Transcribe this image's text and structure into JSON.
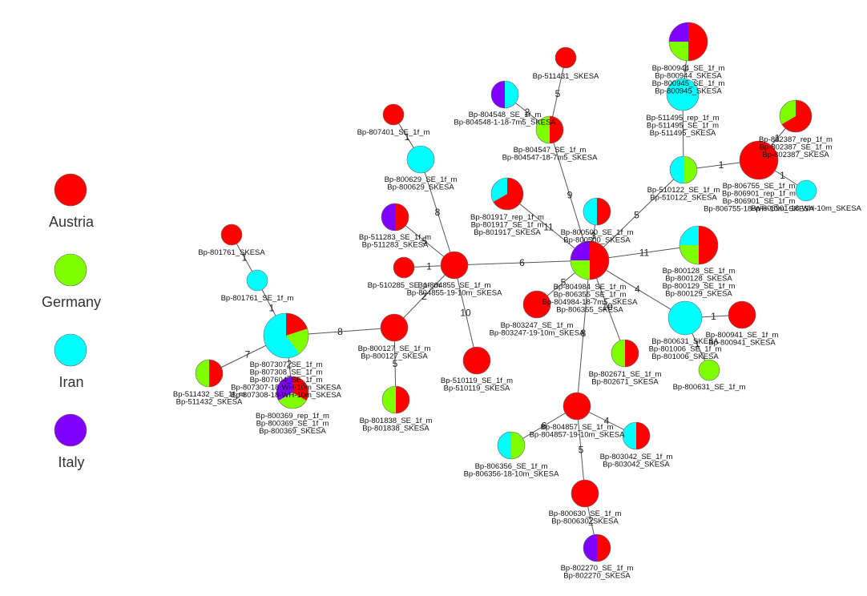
{
  "legend": [
    {
      "label": "Austria",
      "color": "#ff0000"
    },
    {
      "label": "Germany",
      "color": "#80ff00"
    },
    {
      "label": "Iran",
      "color": "#00ffff"
    },
    {
      "label": "Italy",
      "color": "#8000ff"
    }
  ],
  "nodes": {
    "n_801761": {
      "labels": [
        "Bp-801761_SKESA"
      ],
      "pie": [
        1,
        0,
        0,
        0
      ]
    },
    "n_801761b": {
      "labels": [
        "Bp-801761_SE_1f_m"
      ],
      "pie": [
        0,
        0,
        1,
        0
      ]
    },
    "n_807307": {
      "labels": [
        "Bp-807307_SE_1f_m",
        "Bp-807308_SE_1f_m",
        "Bp-807604_SE_1f_m",
        "Bp-807307-18-WH-10m_SKESA",
        "Bp-807308-18-WH-10m_SKESA"
      ],
      "pie": [
        1,
        1,
        3,
        0
      ]
    },
    "n_511432": {
      "labels": [
        "Bp-511432_SE_1f_m",
        "Bp-511432_SKESA"
      ],
      "pie": [
        1,
        1,
        0,
        0
      ]
    },
    "n_800369": {
      "labels": [
        "Bp-800369_rep_1f_m",
        "Bp-800369_SE_1f_m",
        "Bp-800369_SKESA"
      ],
      "pie": [
        1,
        1,
        0,
        1
      ]
    },
    "n_800127": {
      "labels": [
        "Bp-800127_SE_1f_m",
        "Bp-800127_SKESA"
      ],
      "pie": [
        1,
        0,
        0,
        0
      ]
    },
    "n_801838": {
      "labels": [
        "Bp-801838_SE_1f_m",
        "Bp-801838_SKESA"
      ],
      "pie": [
        1,
        1,
        0,
        0
      ]
    },
    "n_807401": {
      "labels": [
        "Bp-807401_SE_1f_m"
      ],
      "pie": [
        1,
        0,
        0,
        0
      ]
    },
    "n_800629": {
      "labels": [
        "Bp-800629_SE_1f_m",
        "Bp-800629_SKESA"
      ],
      "pie": [
        0,
        0,
        1,
        0
      ]
    },
    "n_511283": {
      "labels": [
        "Bp-511283_SE_1f_m",
        "Bp-511283_SKESA"
      ],
      "pie": [
        1,
        0,
        0,
        1
      ]
    },
    "n_510285": {
      "labels": [
        "Bp-510285_SE_1f_m"
      ],
      "pie": [
        1,
        0,
        0,
        0
      ]
    },
    "n_804855": {
      "labels": [
        "Bp-804855_SE_1f_m",
        "Bp-804855-19-10m_SKESA"
      ],
      "pie": [
        1,
        0,
        0,
        0
      ]
    },
    "n_510119": {
      "labels": [
        "Bp-510119_SE_1f_m",
        "Bp-510119_SKESA"
      ],
      "pie": [
        1,
        0,
        0,
        0
      ]
    },
    "n_804548": {
      "labels": [
        "Bp-804548_SE_1f_m",
        "Bp-804548-1-18-7m5_SKESA"
      ],
      "pie": [
        0,
        0,
        1,
        1
      ]
    },
    "n_511431": {
      "labels": [
        "Bp-511431_SKESA"
      ],
      "pie": [
        1,
        0,
        0,
        0
      ]
    },
    "n_804547": {
      "labels": [
        "Bp-804547_SE_1f_m",
        "Bp-804547-18-7m5_SKESA"
      ],
      "pie": [
        1,
        1,
        0,
        0
      ]
    },
    "n_801917": {
      "labels": [
        "Bp-801917_rep_1f_m",
        "Bp-801917_SE_1f_m",
        "Bp-801917_SKESA"
      ],
      "pie": [
        2,
        0,
        1,
        0
      ]
    },
    "n_800500": {
      "labels": [
        "Bp-800500_SE_1f_m",
        "Bp-800500_SKESA"
      ],
      "pie": [
        1,
        0,
        1,
        0
      ]
    },
    "n_804984": {
      "labels": [
        "Bp-804984_SE_1f_m",
        "Bp-806355_SE_1f_m",
        "Bp-804984-18-7m5_SKESA",
        "Bp-806355_SKESA"
      ],
      "pie": [
        2,
        1,
        0,
        1
      ]
    },
    "n_803247": {
      "labels": [
        "Bp-803247_SE_1f_m",
        "Bp-803247-19-10m_SKESA"
      ],
      "pie": [
        1,
        0,
        0,
        0
      ]
    },
    "n_802671": {
      "labels": [
        "Bp-802671_SE_1f_m",
        "Bp-802671_SKESA"
      ],
      "pie": [
        1,
        1,
        0,
        0
      ]
    },
    "n_804857": {
      "labels": [
        "Bp-804857_SE_1f_m",
        "Bp-804857-19-10m_SKESA"
      ],
      "pie": [
        1,
        0,
        0,
        0
      ]
    },
    "n_806356": {
      "labels": [
        "Bp-806356_SE_1f_m",
        "Bp-806356-18-10m_SKESA"
      ],
      "pie": [
        0,
        1,
        1,
        0
      ]
    },
    "n_803042": {
      "labels": [
        "Bp-803042_SE_1f_m",
        "Bp-803042_SKESA"
      ],
      "pie": [
        1,
        0,
        1,
        0
      ]
    },
    "n_800630": {
      "labels": [
        "Bp-800630_SE_1f_m",
        "Bp-800630_SKESA"
      ],
      "pie": [
        1,
        0,
        0,
        0
      ]
    },
    "n_802270": {
      "labels": [
        "Bp-802270_SE_1f_m",
        "Bp-802270_SKESA"
      ],
      "pie": [
        1,
        0,
        0,
        1
      ]
    },
    "n_800128": {
      "labels": [
        "Bp-800128_SE_1f_m",
        "Bp-800128_SKESA",
        "Bp-800129_SE_1f_m",
        "Bp-800129_SKESA"
      ],
      "pie": [
        2,
        1,
        1,
        0
      ]
    },
    "n_800631": {
      "labels": [
        "Bp-800631_SKESA",
        "Bp-801006_SE_1f_m",
        "Bp-801006_SKESA"
      ],
      "pie": [
        0,
        0,
        1,
        0
      ]
    },
    "n_800941": {
      "labels": [
        "Bp-800941_SE_1f_m",
        "Bp-800941_SKESA"
      ],
      "pie": [
        1,
        0,
        0,
        0
      ]
    },
    "n_800631b": {
      "labels": [
        "Bp-800631_SE_1f_m"
      ],
      "pie": [
        0,
        1,
        0,
        0
      ]
    },
    "n_510122": {
      "labels": [
        "Bp-510122_SE_1f_m",
        "Bp-510122_SKESA"
      ],
      "pie": [
        0,
        1,
        1,
        0
      ]
    },
    "n_511495": {
      "labels": [
        "Bp-511495_rep_1f_m",
        "Bp-511495_SE_1f_m",
        "Bp-511495_SKESA"
      ],
      "pie": [
        0,
        0,
        1,
        0
      ]
    },
    "n_800944": {
      "labels": [
        "Bp-800944_SE_1f_m",
        "Bp-800944_SKESA",
        "Bp-800945_SE_1f_m",
        "Bp-800945_SKESA"
      ],
      "pie": [
        2,
        1,
        0,
        1
      ]
    },
    "n_806755": {
      "labels": [
        "Bp-806755_SE_1f_m",
        "Bp-806901_rep_1f_m",
        "Bp-806901_SE_1f_m",
        "Bp-806755-18-WH-10m_SKESA"
      ],
      "pie": [
        1,
        0,
        0,
        0
      ]
    },
    "n_802387": {
      "labels": [
        "Bp-802387_rep_1f_m",
        "Bp-802387_SE_1f_m",
        "Bp-802387_SKESA"
      ],
      "pie": [
        2,
        1,
        0,
        0
      ]
    },
    "n_806901": {
      "labels": [
        "Bp-806901-18-WH-10m_SKESA"
      ],
      "pie": [
        0,
        0,
        1,
        0
      ]
    }
  },
  "edges": [
    {
      "from": "n_801761",
      "to": "n_801761b",
      "label": "1"
    },
    {
      "from": "n_801761b",
      "to": "n_807307",
      "label": "1"
    },
    {
      "from": "n_807307",
      "to": "n_511432",
      "label": "7"
    },
    {
      "from": "n_807307",
      "to": "n_800369",
      "label": "2"
    },
    {
      "from": "n_807307",
      "to": "n_800127",
      "label": "8"
    },
    {
      "from": "n_800127",
      "to": "n_801838",
      "label": "5"
    },
    {
      "from": "n_800127",
      "to": "n_804855",
      "label": "2"
    },
    {
      "from": "n_807401",
      "to": "n_800629",
      "label": "1"
    },
    {
      "from": "n_800629",
      "to": "n_804855",
      "label": "8"
    },
    {
      "from": "n_511283",
      "to": "n_804855",
      "label": "5"
    },
    {
      "from": "n_510285",
      "to": "n_804855",
      "label": "1"
    },
    {
      "from": "n_804855",
      "to": "n_510119",
      "label": "10"
    },
    {
      "from": "n_804855",
      "to": "n_804984",
      "label": "6"
    },
    {
      "from": "n_804548",
      "to": "n_804547",
      "label": "2"
    },
    {
      "from": "n_511431",
      "to": "n_804547",
      "label": "5"
    },
    {
      "from": "n_804547",
      "to": "n_804984",
      "label": "9"
    },
    {
      "from": "n_801917",
      "to": "n_804984",
      "label": "11"
    },
    {
      "from": "n_800500",
      "to": "n_804984",
      "label": "3"
    },
    {
      "from": "n_804984",
      "to": "n_803247",
      "label": "5"
    },
    {
      "from": "n_804984",
      "to": "n_802671",
      "label": "10"
    },
    {
      "from": "n_804984",
      "to": "n_804857",
      "label": "8"
    },
    {
      "from": "n_804984",
      "to": "n_800128",
      "label": "11"
    },
    {
      "from": "n_804984",
      "to": "n_800631",
      "label": "4"
    },
    {
      "from": "n_804984",
      "to": "n_510122",
      "label": "5"
    },
    {
      "from": "n_804857",
      "to": "n_806356",
      "label": "6"
    },
    {
      "from": "n_804857",
      "to": "n_803042",
      "label": "4"
    },
    {
      "from": "n_804857",
      "to": "n_800630",
      "label": "5"
    },
    {
      "from": "n_800630",
      "to": "n_802270",
      "label": "2"
    },
    {
      "from": "n_800631",
      "to": "n_800941",
      "label": "1"
    },
    {
      "from": "n_800631",
      "to": "n_800631b",
      "label": "1"
    },
    {
      "from": "n_510122",
      "to": "n_511495",
      "label": ""
    },
    {
      "from": "n_511495",
      "to": "n_800944",
      "label": "1"
    },
    {
      "from": "n_510122",
      "to": "n_806755",
      "label": "1"
    },
    {
      "from": "n_806755",
      "to": "n_802387",
      "label": "1"
    },
    {
      "from": "n_806755",
      "to": "n_806901",
      "label": "1"
    }
  ]
}
